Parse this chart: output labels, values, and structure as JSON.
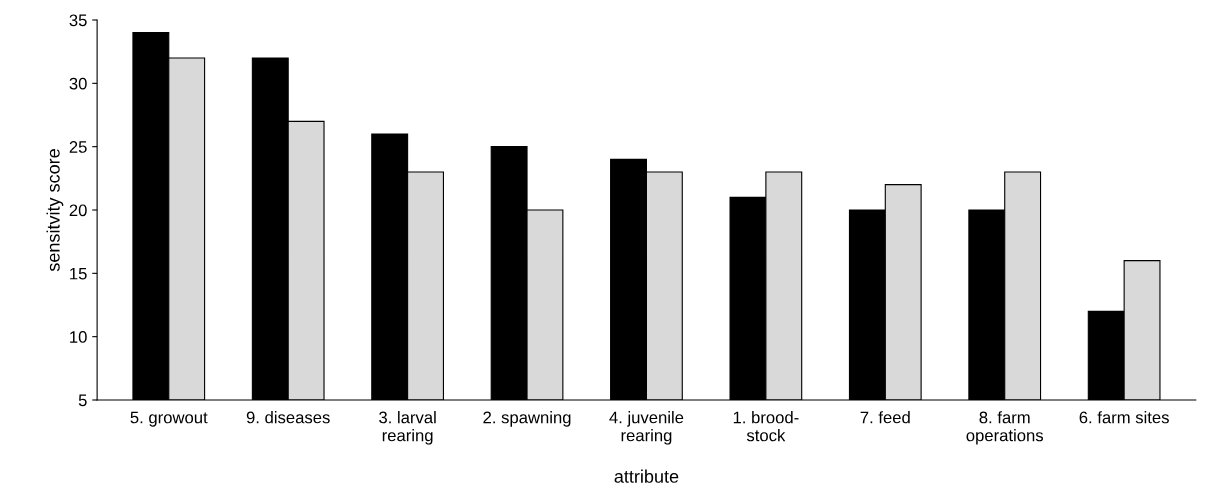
{
  "chart_data": {
    "type": "bar",
    "xlabel": "attribute",
    "ylabel": "sensitvity score",
    "categories": [
      "5. growout",
      "9. diseases",
      "3. larval\nrearing",
      "2. spawning",
      "4. juvenile\nrearing",
      "1. brood-\nstock",
      "7. feed",
      "8. farm\noperations",
      "6. farm sites"
    ],
    "series": [
      {
        "color": "#000000",
        "values": [
          34,
          32,
          26,
          25,
          24,
          21,
          20,
          20,
          12
        ]
      },
      {
        "color": "#d9d9d9",
        "values": [
          32,
          27,
          23,
          20,
          23,
          23,
          22,
          23,
          16
        ]
      }
    ],
    "ylim": [
      5,
      35
    ],
    "yticks": [
      5,
      10,
      15,
      20,
      25,
      30,
      35
    ],
    "grid": false
  }
}
